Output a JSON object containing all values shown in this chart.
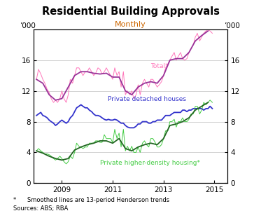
{
  "title": "Residential Building Approvals",
  "subtitle": "Monthly",
  "subtitle_color": "#cc6600",
  "ylabel_left": "’000",
  "ylabel_right": "’000",
  "footnote1": "*      Smoothed lines are 13-period Henderson trends",
  "footnote2": "Sources: ABS; RBA",
  "ylim": [
    0,
    20
  ],
  "yticks": [
    0,
    4,
    8,
    12,
    16
  ],
  "xlim_start": 2007.9,
  "xlim_end": 2015.5,
  "xticks": [
    2009,
    2011,
    2013,
    2015
  ],
  "total_raw_x": [
    2008.0,
    2008.08,
    2008.17,
    2008.25,
    2008.33,
    2008.42,
    2008.5,
    2008.58,
    2008.67,
    2008.75,
    2008.83,
    2008.92,
    2009.0,
    2009.08,
    2009.17,
    2009.25,
    2009.33,
    2009.42,
    2009.5,
    2009.58,
    2009.67,
    2009.75,
    2009.83,
    2009.92,
    2010.0,
    2010.08,
    2010.17,
    2010.25,
    2010.33,
    2010.42,
    2010.5,
    2010.58,
    2010.67,
    2010.75,
    2010.83,
    2010.92,
    2011.0,
    2011.08,
    2011.17,
    2011.25,
    2011.33,
    2011.42,
    2011.5,
    2011.58,
    2011.67,
    2011.75,
    2011.83,
    2011.92,
    2012.0,
    2012.08,
    2012.17,
    2012.25,
    2012.33,
    2012.42,
    2012.5,
    2012.58,
    2012.67,
    2012.75,
    2012.83,
    2012.92,
    2013.0,
    2013.08,
    2013.17,
    2013.25,
    2013.33,
    2013.42,
    2013.5,
    2013.58,
    2013.67,
    2013.75,
    2013.83,
    2013.92,
    2014.0,
    2014.08,
    2014.17,
    2014.25,
    2014.33,
    2014.42,
    2014.5,
    2014.58,
    2014.67,
    2014.75,
    2014.83,
    2014.92
  ],
  "total_raw_y": [
    13.5,
    14.8,
    14.2,
    13.5,
    13.0,
    12.2,
    11.8,
    11.0,
    10.5,
    10.8,
    10.5,
    11.0,
    12.0,
    11.0,
    10.5,
    11.5,
    13.5,
    13.0,
    14.0,
    15.0,
    15.0,
    14.5,
    14.0,
    14.5,
    14.5,
    15.0,
    14.5,
    14.0,
    14.3,
    15.0,
    14.8,
    14.2,
    14.5,
    15.0,
    14.5,
    14.0,
    13.5,
    15.0,
    14.0,
    14.5,
    12.5,
    14.5,
    11.5,
    12.0,
    11.5,
    12.0,
    11.0,
    11.5,
    12.8,
    11.5,
    13.0,
    13.5,
    13.0,
    12.5,
    13.5,
    13.5,
    13.0,
    12.5,
    12.8,
    13.2,
    14.0,
    15.0,
    15.5,
    16.0,
    16.5,
    17.0,
    16.0,
    16.5,
    17.0,
    16.2,
    16.0,
    16.2,
    17.0,
    17.5,
    18.0,
    19.0,
    19.5,
    18.5,
    19.0,
    19.5,
    19.8,
    20.0,
    19.8,
    19.5
  ],
  "total_smooth_y": [
    13.5,
    13.0,
    11.5,
    10.8,
    11.0,
    12.5,
    14.0,
    14.5,
    14.5,
    14.3,
    14.2,
    14.3,
    13.8,
    13.8,
    12.0,
    11.5,
    12.5,
    13.0,
    13.2,
    13.0,
    14.0,
    16.0,
    16.2,
    16.2,
    17.0,
    18.5,
    19.2,
    19.8
  ],
  "total_smooth_x": [
    2008.0,
    2008.25,
    2008.5,
    2008.75,
    2009.0,
    2009.25,
    2009.5,
    2009.75,
    2010.0,
    2010.25,
    2010.5,
    2010.75,
    2011.0,
    2011.25,
    2011.5,
    2011.75,
    2012.0,
    2012.25,
    2012.5,
    2012.75,
    2013.0,
    2013.25,
    2013.5,
    2013.75,
    2014.0,
    2014.25,
    2014.5,
    2014.75
  ],
  "houses_x": [
    2008.0,
    2008.08,
    2008.17,
    2008.25,
    2008.33,
    2008.42,
    2008.5,
    2008.58,
    2008.67,
    2008.75,
    2008.83,
    2008.92,
    2009.0,
    2009.08,
    2009.17,
    2009.25,
    2009.33,
    2009.42,
    2009.5,
    2009.58,
    2009.67,
    2009.75,
    2009.83,
    2009.92,
    2010.0,
    2010.08,
    2010.17,
    2010.25,
    2010.33,
    2010.42,
    2010.5,
    2010.58,
    2010.67,
    2010.75,
    2010.83,
    2010.92,
    2011.0,
    2011.08,
    2011.17,
    2011.25,
    2011.33,
    2011.42,
    2011.5,
    2011.58,
    2011.67,
    2011.75,
    2011.83,
    2011.92,
    2012.0,
    2012.08,
    2012.17,
    2012.25,
    2012.33,
    2012.42,
    2012.5,
    2012.58,
    2012.67,
    2012.75,
    2012.83,
    2012.92,
    2013.0,
    2013.08,
    2013.17,
    2013.25,
    2013.33,
    2013.42,
    2013.5,
    2013.58,
    2013.67,
    2013.75,
    2013.83,
    2013.92,
    2014.0,
    2014.08,
    2014.17,
    2014.25,
    2014.33,
    2014.42,
    2014.5,
    2014.58,
    2014.67,
    2014.75,
    2014.83,
    2014.92
  ],
  "houses_y": [
    8.8,
    9.0,
    9.2,
    8.8,
    8.7,
    8.5,
    8.2,
    8.0,
    7.8,
    7.5,
    7.7,
    8.0,
    8.2,
    8.0,
    7.8,
    8.0,
    8.5,
    8.8,
    9.3,
    9.8,
    10.0,
    10.2,
    10.0,
    9.8,
    9.8,
    9.5,
    9.3,
    9.0,
    8.8,
    8.8,
    8.7,
    8.5,
    8.3,
    8.2,
    8.3,
    8.2,
    8.2,
    8.3,
    8.2,
    8.0,
    7.8,
    7.8,
    7.5,
    7.3,
    7.2,
    7.2,
    7.2,
    7.4,
    7.7,
    7.7,
    8.0,
    8.0,
    8.0,
    7.8,
    7.8,
    8.0,
    8.0,
    8.2,
    8.2,
    8.2,
    8.5,
    8.8,
    8.8,
    8.8,
    9.0,
    9.2,
    9.2,
    9.2,
    9.2,
    9.5,
    9.5,
    9.3,
    9.5,
    9.5,
    9.7,
    9.7,
    9.7,
    9.7,
    9.7,
    9.5,
    9.7,
    9.7,
    10.0,
    9.7
  ],
  "density_raw_x": [
    2008.0,
    2008.08,
    2008.17,
    2008.25,
    2008.33,
    2008.42,
    2008.5,
    2008.58,
    2008.67,
    2008.75,
    2008.83,
    2008.92,
    2009.0,
    2009.08,
    2009.17,
    2009.25,
    2009.33,
    2009.42,
    2009.5,
    2009.58,
    2009.67,
    2009.75,
    2009.83,
    2009.92,
    2010.0,
    2010.08,
    2010.17,
    2010.25,
    2010.33,
    2010.42,
    2010.5,
    2010.58,
    2010.67,
    2010.75,
    2010.83,
    2010.92,
    2011.0,
    2011.08,
    2011.17,
    2011.25,
    2011.33,
    2011.42,
    2011.5,
    2011.58,
    2011.67,
    2011.75,
    2011.83,
    2011.92,
    2012.0,
    2012.08,
    2012.17,
    2012.25,
    2012.33,
    2012.42,
    2012.5,
    2012.58,
    2012.67,
    2012.75,
    2012.83,
    2012.92,
    2013.0,
    2013.08,
    2013.17,
    2013.25,
    2013.33,
    2013.42,
    2013.5,
    2013.58,
    2013.67,
    2013.75,
    2013.83,
    2013.92,
    2014.0,
    2014.08,
    2014.17,
    2014.25,
    2014.33,
    2014.42,
    2014.5,
    2014.58,
    2014.67,
    2014.75,
    2014.83,
    2014.92
  ],
  "density_raw_y": [
    4.2,
    4.5,
    4.2,
    4.0,
    3.8,
    3.8,
    3.7,
    3.5,
    3.2,
    3.0,
    3.2,
    3.5,
    3.2,
    2.8,
    2.5,
    2.8,
    3.5,
    3.2,
    4.0,
    5.2,
    4.8,
    4.7,
    4.5,
    4.7,
    4.7,
    5.2,
    5.2,
    5.2,
    5.5,
    5.5,
    5.3,
    5.3,
    6.3,
    5.8,
    5.8,
    5.8,
    5.3,
    7.0,
    5.8,
    6.5,
    4.7,
    7.0,
    4.2,
    4.8,
    4.2,
    4.8,
    4.0,
    4.0,
    4.7,
    4.0,
    5.2,
    5.5,
    5.0,
    4.7,
    5.8,
    5.8,
    5.3,
    4.7,
    4.7,
    5.0,
    5.8,
    6.8,
    6.8,
    8.0,
    8.0,
    8.3,
    7.3,
    8.0,
    8.0,
    8.5,
    8.0,
    8.0,
    8.3,
    9.0,
    9.0,
    10.0,
    10.0,
    9.0,
    9.5,
    10.5,
    10.2,
    10.5,
    10.8,
    10.5
  ],
  "density_smooth_x": [
    2008.0,
    2008.25,
    2008.5,
    2008.75,
    2009.0,
    2009.25,
    2009.5,
    2009.75,
    2010.0,
    2010.25,
    2010.5,
    2010.75,
    2011.0,
    2011.25,
    2011.5,
    2011.75,
    2012.0,
    2012.25,
    2012.5,
    2012.75,
    2013.0,
    2013.25,
    2013.5,
    2013.75,
    2014.0,
    2014.25,
    2014.5,
    2014.75
  ],
  "density_smooth_y": [
    4.2,
    3.9,
    3.5,
    3.2,
    3.0,
    3.2,
    4.3,
    4.7,
    5.0,
    5.2,
    5.5,
    5.5,
    5.2,
    5.8,
    4.5,
    4.2,
    4.7,
    5.0,
    5.2,
    5.0,
    5.8,
    7.5,
    7.7,
    8.0,
    8.5,
    9.5,
    10.0,
    10.5
  ],
  "color_total_raw": "#ff77bb",
  "color_total_smooth": "#993399",
  "color_houses": "#3333cc",
  "color_density_raw": "#44cc44",
  "color_density_smooth": "#226622",
  "label_total": "Total*",
  "label_houses": "Private detached houses",
  "label_density": "Private higher-density housing*"
}
